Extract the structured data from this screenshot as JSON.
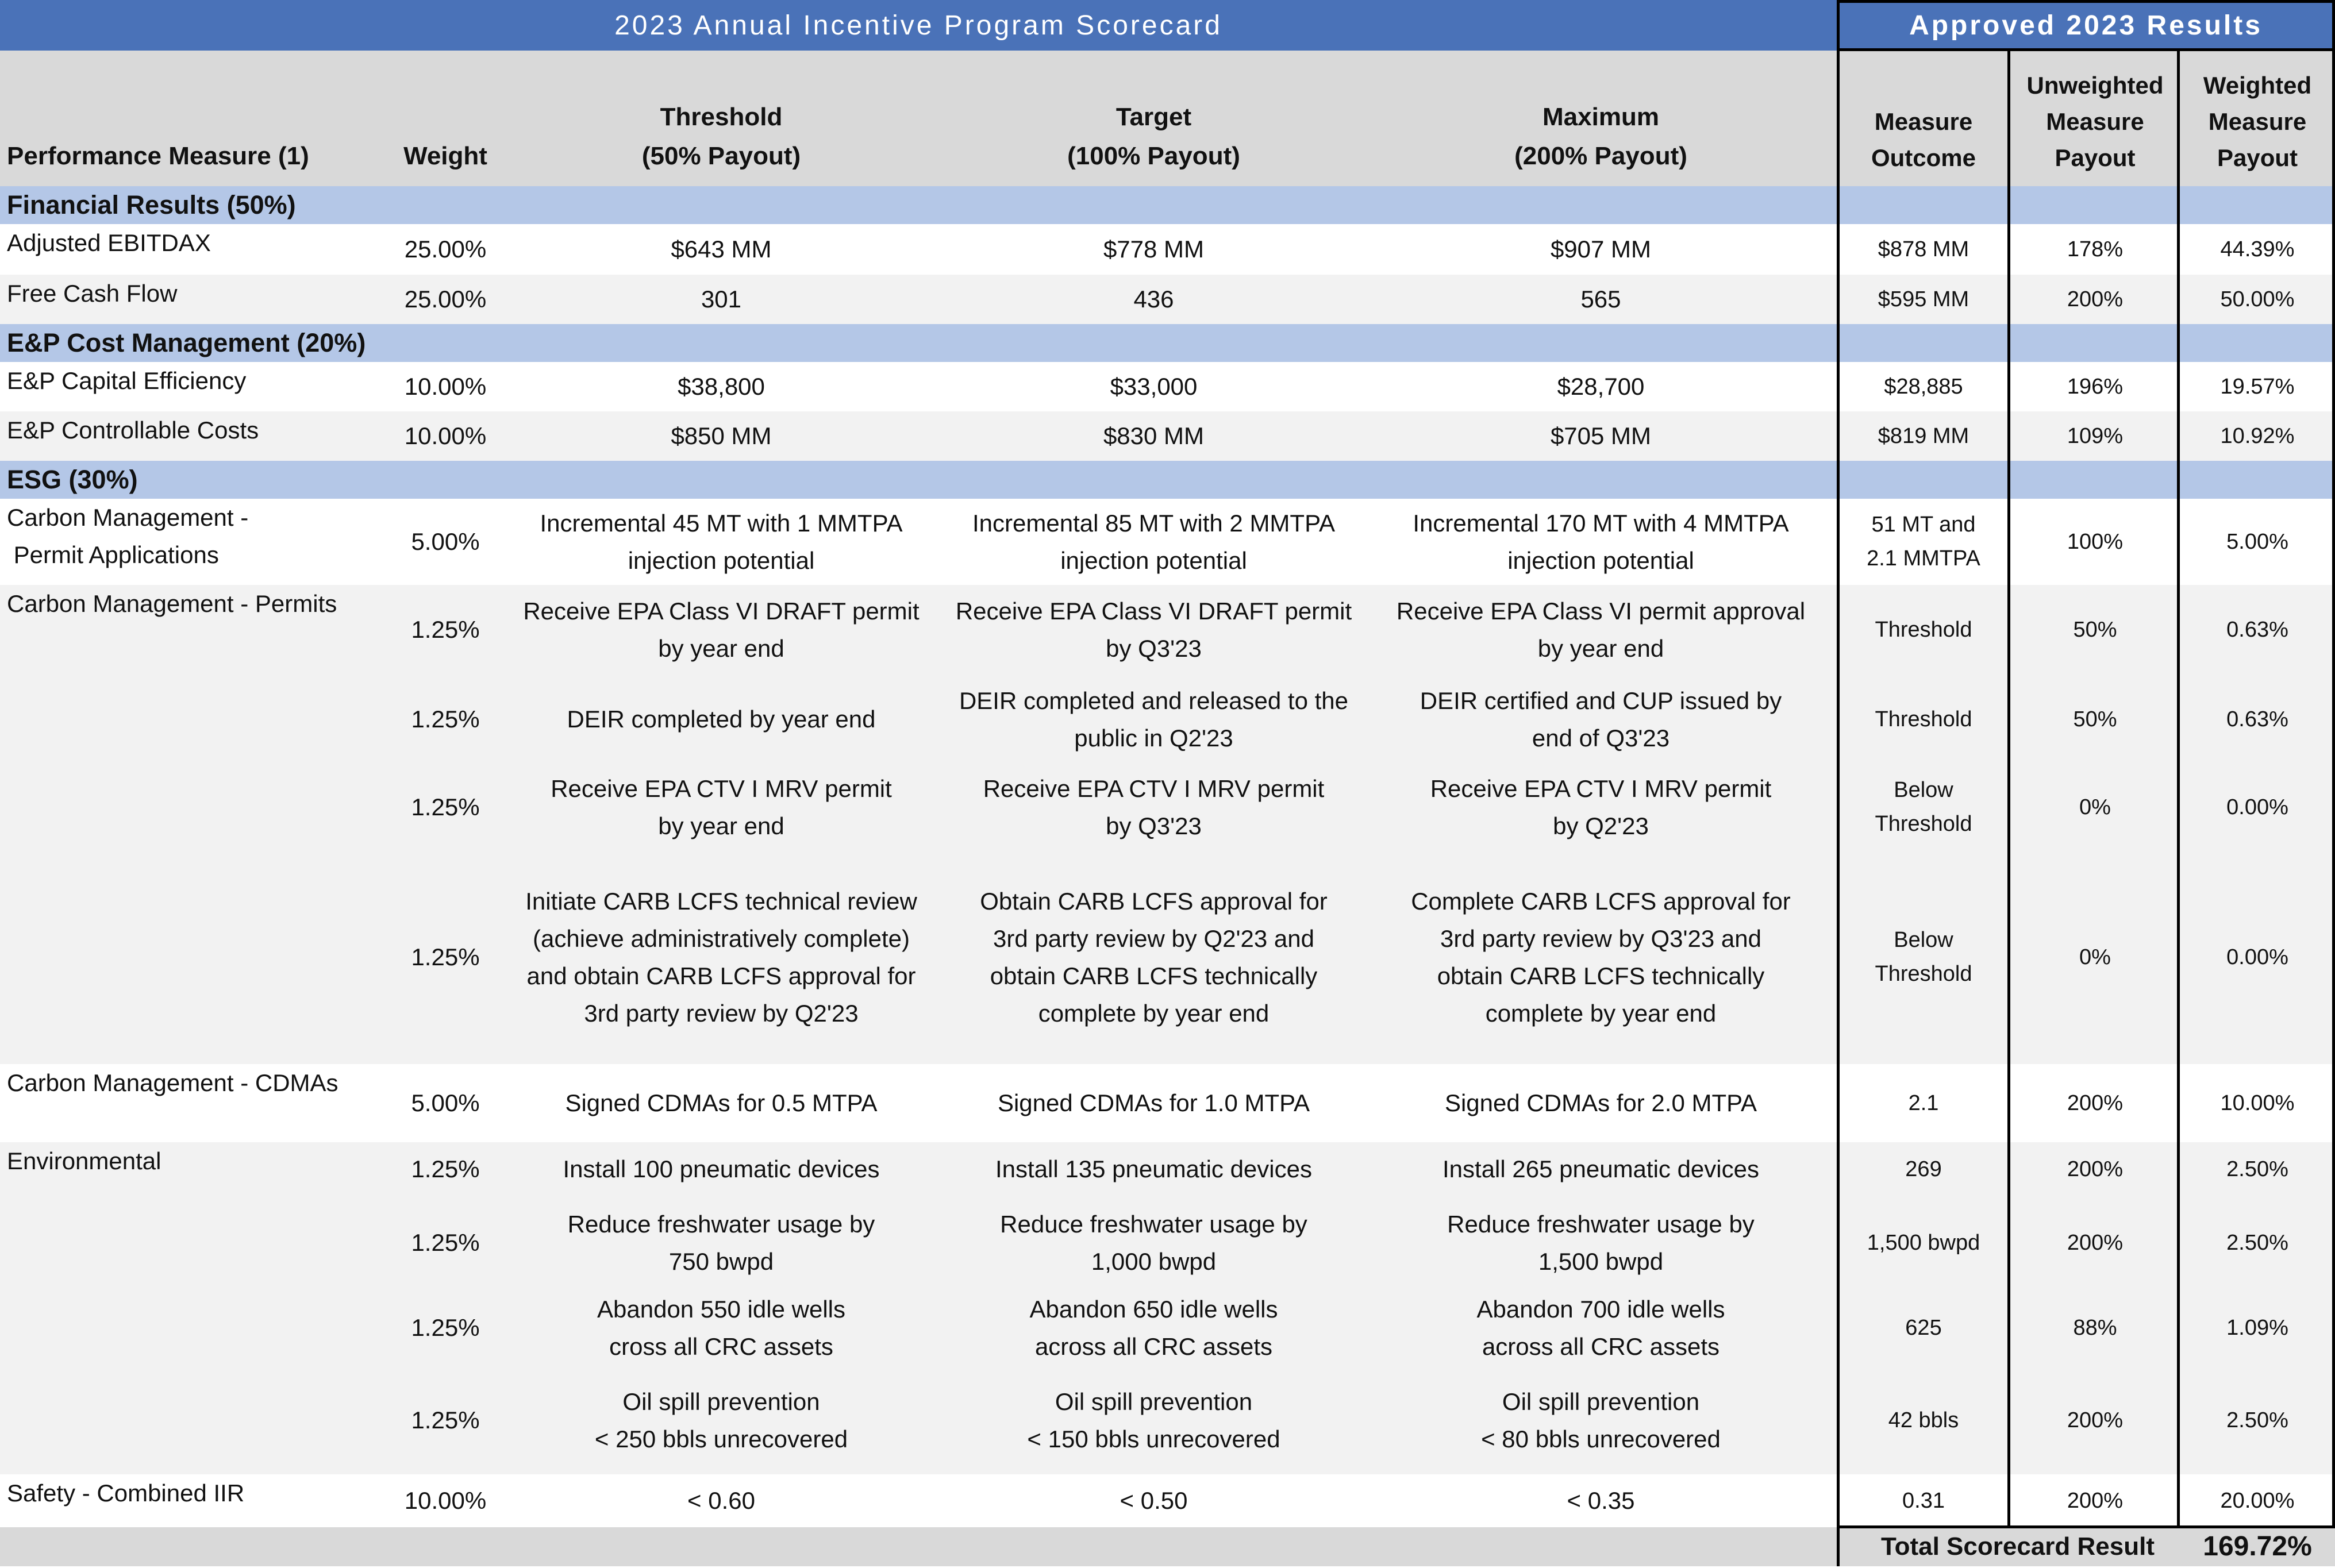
{
  "header": {
    "title": "2023 Annual Incentive Program Scorecard",
    "results_title": "Approved 2023 Results"
  },
  "columns": {
    "measure": "Performance Measure (1)",
    "weight": "Weight",
    "threshold": [
      "Threshold",
      "(50% Payout)"
    ],
    "target": [
      "Target",
      "(100% Payout)"
    ],
    "maximum": [
      "Maximum",
      "(200% Payout)"
    ],
    "outcome": [
      "Measure",
      "Outcome"
    ],
    "unweighted": [
      "Unweighted",
      "Measure",
      "Payout"
    ],
    "weighted": [
      "Weighted",
      "Measure",
      "Payout"
    ]
  },
  "sections": [
    {
      "label": "Financial Results (50%)"
    },
    {
      "label": "E&P Cost Management (20%)"
    },
    {
      "label": "ESG (30%)"
    }
  ],
  "group_labels": [
    [
      "Carbon Management - ",
      " Permit Applications"
    ],
    [
      "Carbon Management - Permits"
    ],
    [
      "Environmental"
    ]
  ],
  "rows": [
    {
      "measure": "Adjusted EBITDAX",
      "weight": "25.00%",
      "threshold": [
        "$643 MM"
      ],
      "target": [
        "$778 MM"
      ],
      "maximum": [
        "$907 MM"
      ],
      "outcome": [
        "$878 MM"
      ],
      "unweighted": "178%",
      "weighted": "44.39%"
    },
    {
      "measure": "Free Cash Flow",
      "weight": "25.00%",
      "threshold": [
        "301"
      ],
      "target": [
        "436"
      ],
      "maximum": [
        "565"
      ],
      "outcome": [
        "$595 MM"
      ],
      "unweighted": "200%",
      "weighted": "50.00%"
    },
    {
      "measure": "E&P Capital Efficiency",
      "weight": "10.00%",
      "threshold": [
        "$38,800"
      ],
      "target": [
        "$33,000"
      ],
      "maximum": [
        "$28,700"
      ],
      "outcome": [
        "$28,885"
      ],
      "unweighted": "196%",
      "weighted": "19.57%"
    },
    {
      "measure": "E&P Controllable Costs",
      "weight": "10.00%",
      "threshold": [
        "$850 MM"
      ],
      "target": [
        "$830 MM"
      ],
      "maximum": [
        "$705 MM"
      ],
      "outcome": [
        "$819 MM"
      ],
      "unweighted": "109%",
      "weighted": "10.92%"
    },
    {
      "measure": "",
      "weight": "5.00%",
      "threshold": [
        "Incremental 45 MT with 1 MMTPA",
        "injection potential"
      ],
      "target": [
        "Incremental 85 MT with 2 MMTPA",
        "injection potential"
      ],
      "maximum": [
        "Incremental 170 MT with 4 MMTPA",
        "injection potential"
      ],
      "outcome": [
        "51 MT and",
        "2.1 MMTPA"
      ],
      "unweighted": "100%",
      "weighted": "5.00%"
    },
    {
      "measure": "",
      "weight": "1.25%",
      "threshold": [
        "Receive EPA Class VI DRAFT permit",
        "by year end"
      ],
      "target": [
        "Receive EPA Class VI DRAFT permit",
        "by Q3'23"
      ],
      "maximum": [
        "Receive EPA Class VI permit approval",
        "by year end"
      ],
      "outcome": [
        "Threshold"
      ],
      "unweighted": "50%",
      "weighted": "0.63%"
    },
    {
      "measure": "",
      "weight": "1.25%",
      "threshold": [
        "DEIR completed by year end"
      ],
      "target": [
        "DEIR completed and released to the",
        "public in Q2'23"
      ],
      "maximum": [
        "DEIR certified and CUP issued by",
        "end of Q3'23"
      ],
      "outcome": [
        "Threshold"
      ],
      "unweighted": "50%",
      "weighted": "0.63%"
    },
    {
      "measure": "",
      "weight": "1.25%",
      "threshold": [
        "Receive EPA CTV I MRV permit",
        "by year end"
      ],
      "target": [
        "Receive EPA CTV I MRV permit",
        "by Q3'23"
      ],
      "maximum": [
        "Receive EPA CTV I MRV permit",
        "by Q2'23"
      ],
      "outcome": [
        "Below",
        "Threshold"
      ],
      "unweighted": "0%",
      "weighted": "0.00%"
    },
    {
      "measure": "",
      "weight": "1.25%",
      "threshold": [
        "Initiate CARB LCFS technical review",
        "(achieve administratively complete)",
        "and obtain CARB LCFS approval for",
        "3rd party review by Q2'23"
      ],
      "target": [
        "Obtain CARB LCFS approval for",
        "3rd party review by Q2'23 and",
        "obtain CARB LCFS technically",
        "complete by year end"
      ],
      "maximum": [
        "Complete CARB LCFS approval for",
        "3rd party review by Q3'23 and",
        "obtain CARB LCFS technically",
        "complete by year end"
      ],
      "outcome": [
        "Below",
        "Threshold"
      ],
      "unweighted": "0%",
      "weighted": "0.00%"
    },
    {
      "measure": "Carbon Management - CDMAs",
      "weight": "5.00%",
      "threshold": [
        "Signed CDMAs for 0.5 MTPA"
      ],
      "target": [
        "Signed CDMAs for 1.0 MTPA"
      ],
      "maximum": [
        "Signed CDMAs for 2.0 MTPA"
      ],
      "outcome": [
        "2.1"
      ],
      "unweighted": "200%",
      "weighted": "10.00%"
    },
    {
      "measure": "",
      "weight": "1.25%",
      "threshold": [
        "Install 100 pneumatic devices"
      ],
      "target": [
        "Install 135 pneumatic devices"
      ],
      "maximum": [
        "Install 265 pneumatic devices"
      ],
      "outcome": [
        "269"
      ],
      "unweighted": "200%",
      "weighted": "2.50%"
    },
    {
      "measure": "",
      "weight": "1.25%",
      "threshold": [
        "Reduce freshwater usage by",
        "750 bwpd"
      ],
      "target": [
        "Reduce freshwater usage by",
        "1,000 bwpd"
      ],
      "maximum": [
        "Reduce freshwater usage by",
        "1,500 bwpd"
      ],
      "outcome": [
        "1,500 bwpd"
      ],
      "unweighted": "200%",
      "weighted": "2.50%"
    },
    {
      "measure": "",
      "weight": "1.25%",
      "threshold": [
        "Abandon 550 idle wells",
        "cross all CRC assets"
      ],
      "target": [
        "Abandon 650 idle wells",
        "across all CRC assets"
      ],
      "maximum": [
        "Abandon 700 idle wells",
        "across all CRC assets"
      ],
      "outcome": [
        "625"
      ],
      "unweighted": "88%",
      "weighted": "1.09%"
    },
    {
      "measure": "",
      "weight": "1.25%",
      "threshold": [
        "Oil spill prevention",
        "< 250 bbls unrecovered"
      ],
      "target": [
        "Oil spill prevention",
        "< 150 bbls unrecovered"
      ],
      "maximum": [
        "Oil spill prevention",
        "< 80 bbls unrecovered"
      ],
      "outcome": [
        "42 bbls"
      ],
      "unweighted": "200%",
      "weighted": "2.50%"
    },
    {
      "measure": "Safety - Combined IIR",
      "weight": "10.00%",
      "threshold": [
        "< 0.60"
      ],
      "target": [
        "< 0.50"
      ],
      "maximum": [
        "< 0.35"
      ],
      "outcome": [
        "0.31"
      ],
      "unweighted": "200%",
      "weighted": "20.00%"
    }
  ],
  "total": {
    "label": "Total Scorecard Result",
    "value": "169.72%"
  }
}
